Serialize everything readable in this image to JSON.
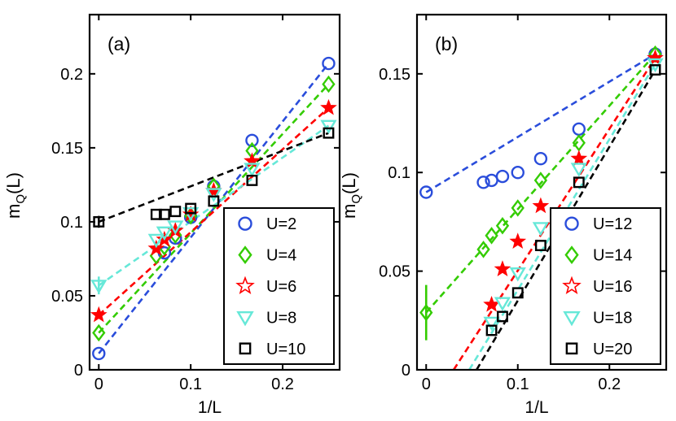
{
  "chart_data": [
    {
      "type": "scatter",
      "panel_label": "(a)",
      "xlabel": "1/L",
      "ylabel_main": "m",
      "ylabel_sub": "Q",
      "ylabel_suffix": "(L)",
      "xlim": [
        -0.01,
        0.262
      ],
      "ylim": [
        0,
        0.24
      ],
      "xticks": [
        0,
        0.1,
        0.2
      ],
      "xtick_labels": [
        "0",
        "0.1",
        "0.2"
      ],
      "yticks": [
        0,
        0.05,
        0.1,
        0.15,
        0.2
      ],
      "ytick_labels": [
        "0",
        "0.05",
        "0.1",
        "0.15",
        "0.2"
      ],
      "legend_position": "bottom-right",
      "series": [
        {
          "name": "U=2",
          "marker": "circle",
          "color": "#2a4ddb",
          "x": [
            0.0,
            0.0714,
            0.0833,
            0.1,
            0.125,
            0.1667,
            0.25
          ],
          "y": [
            0.011,
            0.079,
            0.089,
            0.103,
            0.124,
            0.155,
            0.207
          ],
          "fit_x": [
            0.0,
            0.25
          ],
          "fit_y": [
            0.011,
            0.207
          ]
        },
        {
          "name": "U=4",
          "marker": "diamond",
          "color": "#33cc00",
          "x": [
            0.0,
            0.0625,
            0.0714,
            0.0833,
            0.1,
            0.125,
            0.1667,
            0.25
          ],
          "y": [
            0.025,
            0.077,
            0.083,
            0.091,
            0.104,
            0.124,
            0.148,
            0.193
          ],
          "fit_x": [
            0.0,
            0.25
          ],
          "fit_y": [
            0.025,
            0.193
          ]
        },
        {
          "name": "U=6",
          "marker": "star",
          "color": "#ff0000",
          "x": [
            0.0,
            0.0625,
            0.0714,
            0.0833,
            0.1,
            0.125,
            0.1667,
            0.25
          ],
          "y": [
            0.037,
            0.082,
            0.088,
            0.094,
            0.105,
            0.121,
            0.141,
            0.177
          ],
          "fit_x": [
            0.0,
            0.25
          ],
          "fit_y": [
            0.037,
            0.177
          ]
        },
        {
          "name": "U=8",
          "marker": "triangle-down",
          "color": "#66e8d8",
          "x": [
            0.0,
            0.0625,
            0.0714,
            0.0833,
            0.1,
            0.125,
            0.1667,
            0.25
          ],
          "y": [
            0.057,
            0.088,
            0.093,
            0.097,
            0.106,
            0.119,
            0.136,
            0.165
          ],
          "err": [
            0.006,
            0,
            0,
            0,
            0,
            0,
            0,
            0
          ],
          "fit_x": [
            0.0,
            0.25
          ],
          "fit_y": [
            0.057,
            0.165
          ]
        },
        {
          "name": "U=10",
          "marker": "square",
          "color": "#000000",
          "x": [
            0.0,
            0.0625,
            0.0714,
            0.0833,
            0.1,
            0.125,
            0.1667,
            0.25
          ],
          "y": [
            0.1,
            0.105,
            0.105,
            0.107,
            0.109,
            0.114,
            0.128,
            0.16
          ],
          "err": [
            0.004,
            0,
            0,
            0,
            0,
            0,
            0,
            0
          ],
          "fit_x": [
            0.0,
            0.25
          ],
          "fit_y": [
            0.1,
            0.16
          ]
        }
      ]
    },
    {
      "type": "scatter",
      "panel_label": "(b)",
      "xlabel": "1/L",
      "ylabel_main": "m",
      "ylabel_sub": "Q",
      "ylabel_suffix": "(L)",
      "xlim": [
        -0.01,
        0.262
      ],
      "ylim": [
        0,
        0.18
      ],
      "xticks": [
        0,
        0.1,
        0.2
      ],
      "xtick_labels": [
        "0",
        "0.1",
        "0.2"
      ],
      "yticks": [
        0,
        0.05,
        0.1,
        0.15
      ],
      "ytick_labels": [
        "0",
        "0.05",
        "0.1",
        "0.15"
      ],
      "legend_position": "bottom-right",
      "series": [
        {
          "name": "U=12",
          "marker": "circle",
          "color": "#2a4ddb",
          "x": [
            0.0,
            0.0625,
            0.0714,
            0.0833,
            0.1,
            0.125,
            0.1667,
            0.25
          ],
          "y": [
            0.09,
            0.095,
            0.096,
            0.098,
            0.1,
            0.107,
            0.122,
            0.16
          ],
          "fit_x": [
            0.0,
            0.25
          ],
          "fit_y": [
            0.09,
            0.16
          ]
        },
        {
          "name": "U=14",
          "marker": "diamond",
          "color": "#33cc00",
          "x": [
            0.0,
            0.0625,
            0.0714,
            0.0833,
            0.1,
            0.125,
            0.1667,
            0.25
          ],
          "y": [
            0.029,
            0.061,
            0.068,
            0.073,
            0.082,
            0.096,
            0.115,
            0.16
          ],
          "err": [
            0.014,
            0,
            0,
            0,
            0,
            0,
            0,
            0
          ],
          "fit_x": [
            0.0,
            0.25
          ],
          "fit_y": [
            0.029,
            0.16
          ]
        },
        {
          "name": "U=16",
          "marker": "star",
          "color": "#ff0000",
          "x": [
            0.0714,
            0.0833,
            0.1,
            0.125,
            0.1667,
            0.25
          ],
          "y": [
            0.033,
            0.051,
            0.065,
            0.083,
            0.107,
            0.158
          ],
          "fit_x": [
            0.03,
            0.25
          ],
          "fit_y": [
            0.0,
            0.158
          ]
        },
        {
          "name": "U=18",
          "marker": "triangle-down",
          "color": "#66e8d8",
          "x": [
            0.0714,
            0.0833,
            0.1,
            0.125,
            0.1667,
            0.25
          ],
          "y": [
            0.024,
            0.034,
            0.049,
            0.072,
            0.102,
            0.155
          ],
          "fit_x": [
            0.047,
            0.25
          ],
          "fit_y": [
            0.0,
            0.155
          ]
        },
        {
          "name": "U=20",
          "marker": "square",
          "color": "#000000",
          "x": [
            0.0714,
            0.0833,
            0.1,
            0.125,
            0.1667,
            0.25
          ],
          "y": [
            0.02,
            0.027,
            0.039,
            0.063,
            0.095,
            0.152
          ],
          "fit_x": [
            0.055,
            0.25
          ],
          "fit_y": [
            0.0,
            0.152
          ]
        }
      ]
    }
  ]
}
